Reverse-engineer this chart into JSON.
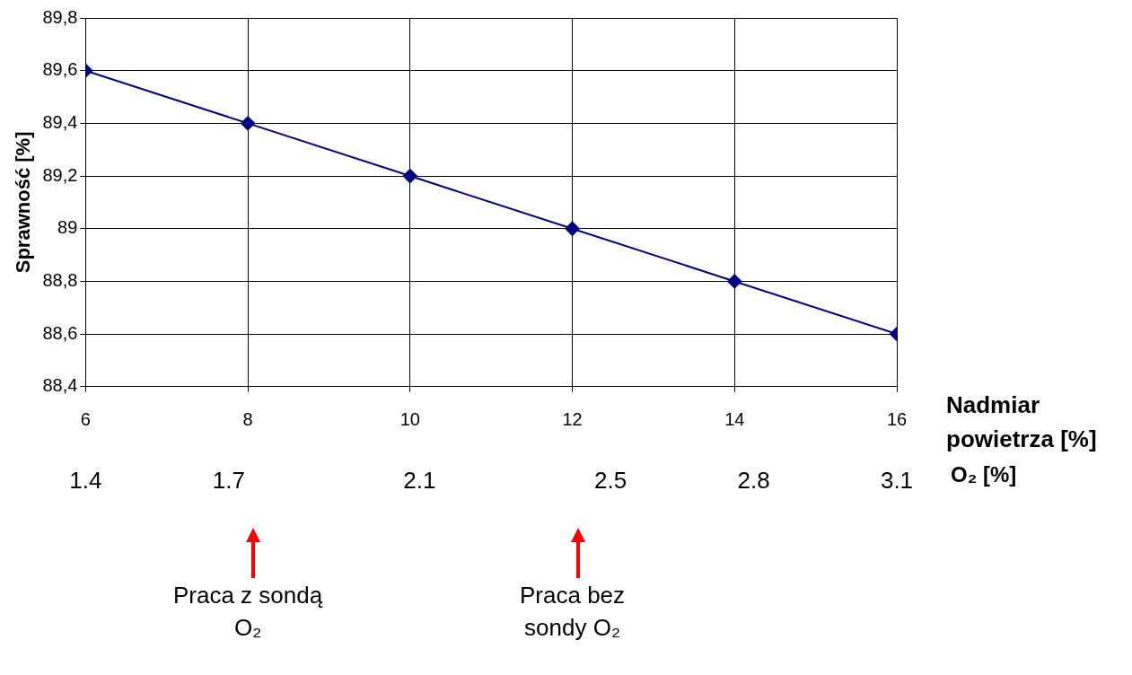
{
  "chart_data": {
    "type": "line",
    "ylabel": "Sprawność [%]",
    "xlabel": "Nadmiar powietrza [%]",
    "x2label": "O₂ [%]",
    "x": [
      6,
      8,
      10,
      12,
      14,
      16
    ],
    "series": [
      {
        "color": "#000080",
        "values": [
          89.6,
          89.4,
          89.2,
          89.0,
          88.8,
          88.6
        ]
      }
    ],
    "xlim": [
      6,
      16
    ],
    "xticks": [
      6,
      8,
      10,
      12,
      14,
      16
    ],
    "x2lim": [
      1.4,
      3.1
    ],
    "x2ticks": [
      1.4,
      1.7,
      2.1,
      2.5,
      2.8,
      3.1
    ],
    "ylim": [
      88.4,
      89.8
    ],
    "yticks": [
      {
        "value": 88.4,
        "label": "88,4"
      },
      {
        "value": 88.6,
        "label": "88,6"
      },
      {
        "value": 88.8,
        "label": "88,8"
      },
      {
        "value": 89,
        "label": "89"
      },
      {
        "value": 89.2,
        "label": "89,2"
      },
      {
        "value": 89.4,
        "label": "89,4"
      },
      {
        "value": 89.6,
        "label": "89,6"
      },
      {
        "value": 89.8,
        "label": "89,8"
      }
    ],
    "grid": true,
    "legend": false,
    "marker": "diamond",
    "line_style": "solid",
    "annotations": [
      "Praca z sondą O₂",
      "Praca bez sondy O₂"
    ]
  }
}
